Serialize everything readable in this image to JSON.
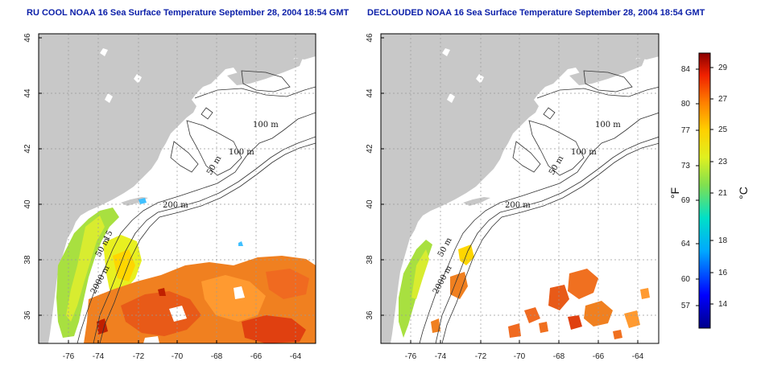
{
  "panels": [
    {
      "title": "RU COOL NOAA 16 Sea Surface Temperature September 28, 2004 18:54 GMT"
    },
    {
      "title": "DECLOUDED NOAA 16 Sea Surface Temperature September 28, 2004 18:54 GMT"
    }
  ],
  "axes": {
    "lat_ticks": [
      "46",
      "44",
      "42",
      "40",
      "38",
      "36"
    ],
    "lon_ticks": [
      "-76",
      "-74",
      "-72",
      "-70",
      "-68",
      "-66",
      "-64"
    ]
  },
  "contours": {
    "label_50": "50 m",
    "label_100": "100 m",
    "label_200": "200 m",
    "label_2000": "2000 m",
    "label_15": "15"
  },
  "colorbar": {
    "unit_f": "°F",
    "unit_c": "°C",
    "f_ticks": [
      "84",
      "80",
      "77",
      "73",
      "69",
      "64",
      "60",
      "57"
    ],
    "c_ticks": [
      "29",
      "27",
      "25",
      "23",
      "21",
      "18",
      "16",
      "14"
    ]
  },
  "colors": {
    "land": "#c8c8c8",
    "title": "#0a1ea8",
    "grid": "#999999"
  }
}
